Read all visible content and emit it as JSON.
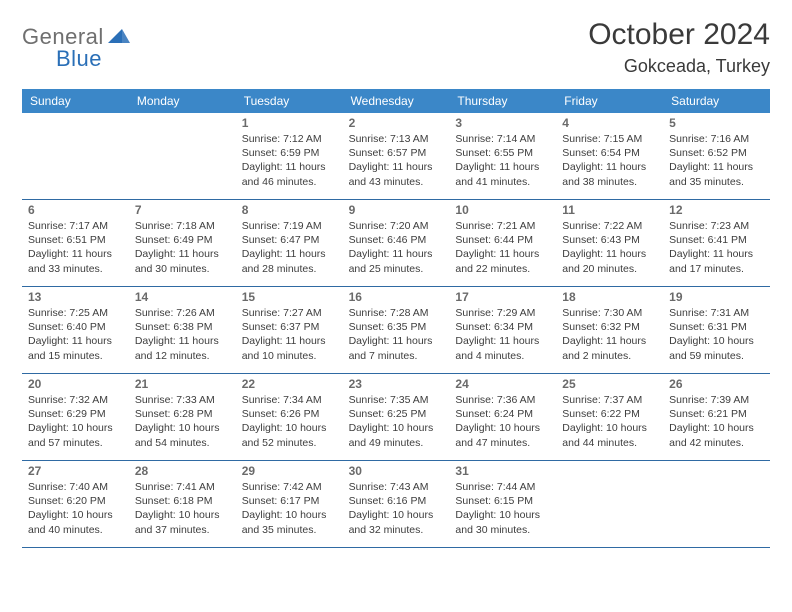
{
  "logo": {
    "word1": "General",
    "word2": "Blue",
    "tri_color": "#2a6fb7"
  },
  "title": "October 2024",
  "location": "Gokceada, Turkey",
  "colors": {
    "header_bg": "#3b87c8",
    "header_text": "#ffffff",
    "rule": "#2f6aa3",
    "daynum": "#6a6a6a",
    "body_text": "#3d3d3d",
    "logo_gray": "#6f6f6f",
    "logo_blue": "#2a6fb7",
    "page_bg": "#ffffff"
  },
  "days_of_week": [
    "Sunday",
    "Monday",
    "Tuesday",
    "Wednesday",
    "Thursday",
    "Friday",
    "Saturday"
  ],
  "weeks": [
    [
      null,
      null,
      {
        "n": "1",
        "sr": "Sunrise: 7:12 AM",
        "ss": "Sunset: 6:59 PM",
        "d1": "Daylight: 11 hours",
        "d2": "and 46 minutes."
      },
      {
        "n": "2",
        "sr": "Sunrise: 7:13 AM",
        "ss": "Sunset: 6:57 PM",
        "d1": "Daylight: 11 hours",
        "d2": "and 43 minutes."
      },
      {
        "n": "3",
        "sr": "Sunrise: 7:14 AM",
        "ss": "Sunset: 6:55 PM",
        "d1": "Daylight: 11 hours",
        "d2": "and 41 minutes."
      },
      {
        "n": "4",
        "sr": "Sunrise: 7:15 AM",
        "ss": "Sunset: 6:54 PM",
        "d1": "Daylight: 11 hours",
        "d2": "and 38 minutes."
      },
      {
        "n": "5",
        "sr": "Sunrise: 7:16 AM",
        "ss": "Sunset: 6:52 PM",
        "d1": "Daylight: 11 hours",
        "d2": "and 35 minutes."
      }
    ],
    [
      {
        "n": "6",
        "sr": "Sunrise: 7:17 AM",
        "ss": "Sunset: 6:51 PM",
        "d1": "Daylight: 11 hours",
        "d2": "and 33 minutes."
      },
      {
        "n": "7",
        "sr": "Sunrise: 7:18 AM",
        "ss": "Sunset: 6:49 PM",
        "d1": "Daylight: 11 hours",
        "d2": "and 30 minutes."
      },
      {
        "n": "8",
        "sr": "Sunrise: 7:19 AM",
        "ss": "Sunset: 6:47 PM",
        "d1": "Daylight: 11 hours",
        "d2": "and 28 minutes."
      },
      {
        "n": "9",
        "sr": "Sunrise: 7:20 AM",
        "ss": "Sunset: 6:46 PM",
        "d1": "Daylight: 11 hours",
        "d2": "and 25 minutes."
      },
      {
        "n": "10",
        "sr": "Sunrise: 7:21 AM",
        "ss": "Sunset: 6:44 PM",
        "d1": "Daylight: 11 hours",
        "d2": "and 22 minutes."
      },
      {
        "n": "11",
        "sr": "Sunrise: 7:22 AM",
        "ss": "Sunset: 6:43 PM",
        "d1": "Daylight: 11 hours",
        "d2": "and 20 minutes."
      },
      {
        "n": "12",
        "sr": "Sunrise: 7:23 AM",
        "ss": "Sunset: 6:41 PM",
        "d1": "Daylight: 11 hours",
        "d2": "and 17 minutes."
      }
    ],
    [
      {
        "n": "13",
        "sr": "Sunrise: 7:25 AM",
        "ss": "Sunset: 6:40 PM",
        "d1": "Daylight: 11 hours",
        "d2": "and 15 minutes."
      },
      {
        "n": "14",
        "sr": "Sunrise: 7:26 AM",
        "ss": "Sunset: 6:38 PM",
        "d1": "Daylight: 11 hours",
        "d2": "and 12 minutes."
      },
      {
        "n": "15",
        "sr": "Sunrise: 7:27 AM",
        "ss": "Sunset: 6:37 PM",
        "d1": "Daylight: 11 hours",
        "d2": "and 10 minutes."
      },
      {
        "n": "16",
        "sr": "Sunrise: 7:28 AM",
        "ss": "Sunset: 6:35 PM",
        "d1": "Daylight: 11 hours",
        "d2": "and 7 minutes."
      },
      {
        "n": "17",
        "sr": "Sunrise: 7:29 AM",
        "ss": "Sunset: 6:34 PM",
        "d1": "Daylight: 11 hours",
        "d2": "and 4 minutes."
      },
      {
        "n": "18",
        "sr": "Sunrise: 7:30 AM",
        "ss": "Sunset: 6:32 PM",
        "d1": "Daylight: 11 hours",
        "d2": "and 2 minutes."
      },
      {
        "n": "19",
        "sr": "Sunrise: 7:31 AM",
        "ss": "Sunset: 6:31 PM",
        "d1": "Daylight: 10 hours",
        "d2": "and 59 minutes."
      }
    ],
    [
      {
        "n": "20",
        "sr": "Sunrise: 7:32 AM",
        "ss": "Sunset: 6:29 PM",
        "d1": "Daylight: 10 hours",
        "d2": "and 57 minutes."
      },
      {
        "n": "21",
        "sr": "Sunrise: 7:33 AM",
        "ss": "Sunset: 6:28 PM",
        "d1": "Daylight: 10 hours",
        "d2": "and 54 minutes."
      },
      {
        "n": "22",
        "sr": "Sunrise: 7:34 AM",
        "ss": "Sunset: 6:26 PM",
        "d1": "Daylight: 10 hours",
        "d2": "and 52 minutes."
      },
      {
        "n": "23",
        "sr": "Sunrise: 7:35 AM",
        "ss": "Sunset: 6:25 PM",
        "d1": "Daylight: 10 hours",
        "d2": "and 49 minutes."
      },
      {
        "n": "24",
        "sr": "Sunrise: 7:36 AM",
        "ss": "Sunset: 6:24 PM",
        "d1": "Daylight: 10 hours",
        "d2": "and 47 minutes."
      },
      {
        "n": "25",
        "sr": "Sunrise: 7:37 AM",
        "ss": "Sunset: 6:22 PM",
        "d1": "Daylight: 10 hours",
        "d2": "and 44 minutes."
      },
      {
        "n": "26",
        "sr": "Sunrise: 7:39 AM",
        "ss": "Sunset: 6:21 PM",
        "d1": "Daylight: 10 hours",
        "d2": "and 42 minutes."
      }
    ],
    [
      {
        "n": "27",
        "sr": "Sunrise: 7:40 AM",
        "ss": "Sunset: 6:20 PM",
        "d1": "Daylight: 10 hours",
        "d2": "and 40 minutes."
      },
      {
        "n": "28",
        "sr": "Sunrise: 7:41 AM",
        "ss": "Sunset: 6:18 PM",
        "d1": "Daylight: 10 hours",
        "d2": "and 37 minutes."
      },
      {
        "n": "29",
        "sr": "Sunrise: 7:42 AM",
        "ss": "Sunset: 6:17 PM",
        "d1": "Daylight: 10 hours",
        "d2": "and 35 minutes."
      },
      {
        "n": "30",
        "sr": "Sunrise: 7:43 AM",
        "ss": "Sunset: 6:16 PM",
        "d1": "Daylight: 10 hours",
        "d2": "and 32 minutes."
      },
      {
        "n": "31",
        "sr": "Sunrise: 7:44 AM",
        "ss": "Sunset: 6:15 PM",
        "d1": "Daylight: 10 hours",
        "d2": "and 30 minutes."
      },
      null,
      null
    ]
  ]
}
